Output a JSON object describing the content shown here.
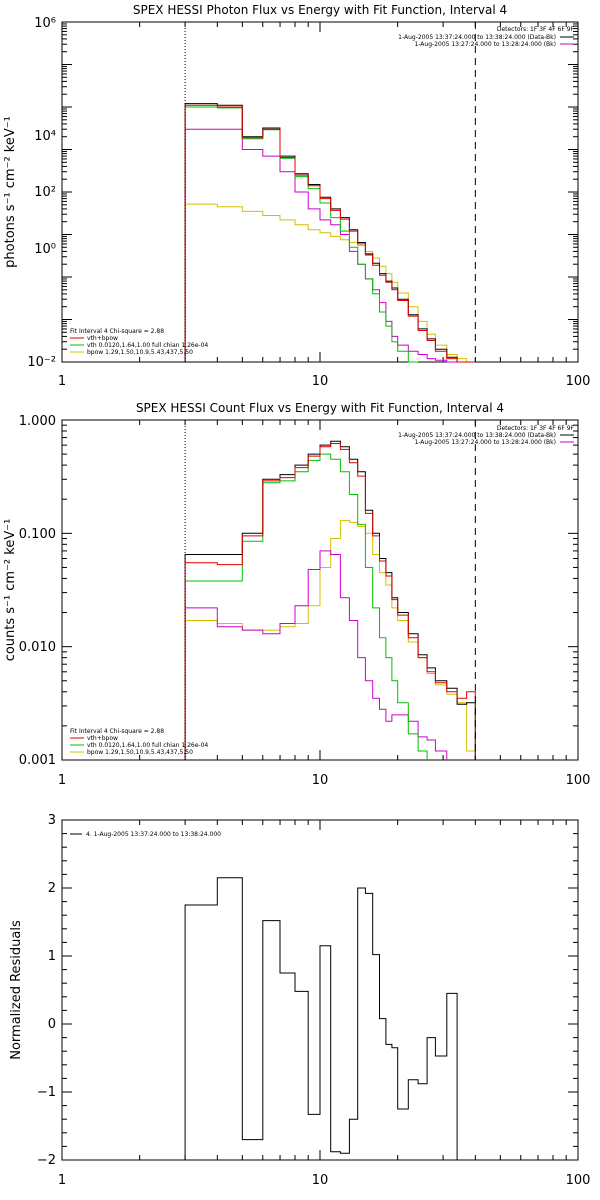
{
  "colors": {
    "total": "#000000",
    "fit_sum": "#e00000",
    "vth": "#00c000",
    "bpow": "#d4c000",
    "background": "#cc00cc"
  },
  "chart_data": [
    {
      "type": "line",
      "title": "SPEX HESSI Photon Flux vs Energy with Fit Function, Interval 4",
      "ylabel": "photons s⁻¹ cm⁻² keV⁻¹",
      "xscale": "log",
      "yscale": "log",
      "xlim": [
        1,
        100
      ],
      "ylim": [
        0.01,
        1000000
      ],
      "xticks": [
        "1",
        "10",
        "100"
      ],
      "yticks": [
        "10⁻²",
        "10⁰",
        "10²",
        "10⁴",
        "10⁶"
      ],
      "detectors": "Detectors: 1F 3F 4F 6F 9F",
      "legend": [
        "1-Aug-2005 13:37:24.000 to 13:38:24.000 (Data-Bk)",
        "1-Aug-2005 13:27:24.000 to 13:28:24.000 (Bk)"
      ],
      "fit_info": [
        "Fit Interval 4   Chi-square = 2.88",
        "vth+bpow",
        "vth 0.0120,1.64,1.00  full chian 1.26e-04",
        "bpow 1.29,1.50,10.9,5.43,437,5.50"
      ],
      "dotted_line_x": 3,
      "dashed_line_x": 40,
      "edges": [
        3,
        4,
        5,
        6,
        7,
        8,
        9,
        10,
        11,
        12,
        13,
        14,
        15,
        16,
        17,
        18,
        19,
        20,
        22,
        24,
        26,
        28,
        31,
        34,
        37,
        40
      ],
      "series": [
        {
          "name": "1-Aug-2005 13:37:24.000 to 13:38:24.000 (Data-Bk)",
          "key": "total",
          "values": [
            12000,
            11000,
            2000,
            3200,
            700,
            270,
            150,
            75,
            40,
            25,
            13,
            6.5,
            3.5,
            2.1,
            1.2,
            0.8,
            0.55,
            0.3,
            0.13,
            0.06,
            0.035,
            0.02,
            0.013,
            0.01,
            0.01
          ]
        },
        {
          "name": "vth+bpow",
          "key": "fit_sum",
          "values": [
            11000,
            10000,
            1900,
            3000,
            650,
            250,
            140,
            70,
            37,
            23,
            12,
            6,
            3.3,
            1.9,
            1.1,
            0.75,
            0.5,
            0.28,
            0.12,
            0.055,
            0.032,
            0.018,
            0.012,
            0.009,
            0.009
          ]
        },
        {
          "name": "vth",
          "key": "vth",
          "values": [
            10000,
            9500,
            1800,
            2900,
            620,
            230,
            120,
            55,
            25,
            12,
            5,
            2,
            0.9,
            0.4,
            0.15,
            0.07,
            0.03,
            0.018,
            0.007,
            null,
            null,
            null,
            null,
            null,
            null
          ]
        },
        {
          "name": "bpow",
          "key": "bpow",
          "values": [
            52,
            45,
            35,
            28,
            22,
            17,
            13,
            11,
            9,
            7.5,
            6.5,
            5.5,
            4,
            2.8,
            1.8,
            1.2,
            0.75,
            0.42,
            0.2,
            0.09,
            0.045,
            0.025,
            0.015,
            0.012,
            0.01
          ]
        },
        {
          "name": "1-Aug-2005 13:27:24.000 to 13:28:24.000 (Bk)",
          "key": "background",
          "values": [
            3000,
            3000,
            1000,
            700,
            300,
            100,
            40,
            22,
            17,
            10,
            4,
            2,
            0.9,
            0.5,
            0.25,
            0.09,
            0.04,
            0.025,
            0.018,
            0.015,
            0.012,
            0.011,
            0.01,
            null,
            null
          ]
        }
      ]
    },
    {
      "type": "line",
      "title": "SPEX HESSI Count Flux vs Energy with Fit Function, Interval 4",
      "ylabel": "counts s⁻¹ cm⁻² keV⁻¹",
      "xscale": "log",
      "yscale": "log",
      "xlim": [
        1,
        100
      ],
      "ylim": [
        0.001,
        1.0
      ],
      "xticks": [
        "1",
        "10",
        "100"
      ],
      "yticks": [
        "0.001",
        "0.010",
        "0.100",
        "1.000"
      ],
      "detectors": "Detectors: 1F 3F 4F 6F 9F",
      "legend": [
        "1-Aug-2005 13:37:24.000 to 13:38:24.000 (Data-Bk)",
        "1-Aug-2005 13:27:24.000 to 13:28:24.000 (Bk)"
      ],
      "fit_info": [
        "Fit Interval 4   Chi-square = 2.88",
        "vth+bpow",
        "vth 0.0120,1.64,1.00  full chian 1.26e-04",
        "bpow 1.29,1.50,10.9,5.43,437,5.50"
      ],
      "dotted_line_x": 3,
      "dashed_line_x": 40,
      "edges": [
        3,
        4,
        5,
        6,
        7,
        8,
        9,
        10,
        11,
        12,
        13,
        14,
        15,
        16,
        17,
        18,
        19,
        20,
        22,
        24,
        26,
        28,
        31,
        34,
        37,
        40
      ],
      "series": [
        {
          "name": "1-Aug-2005 13:37:24.000 to 13:38:24.000 (Data-Bk)",
          "key": "total",
          "values": [
            0.065,
            0.065,
            0.1,
            0.3,
            0.33,
            0.4,
            0.5,
            0.6,
            0.65,
            0.58,
            0.45,
            0.35,
            0.16,
            0.1,
            0.06,
            0.045,
            0.027,
            0.02,
            0.013,
            0.0085,
            0.0065,
            0.005,
            0.0043,
            0.0031,
            0.0032
          ]
        },
        {
          "name": "vth+bpow",
          "key": "fit_sum",
          "values": [
            0.055,
            0.053,
            0.095,
            0.29,
            0.31,
            0.38,
            0.48,
            0.58,
            0.62,
            0.55,
            0.42,
            0.32,
            0.15,
            0.095,
            0.057,
            0.042,
            0.026,
            0.019,
            0.012,
            0.008,
            0.006,
            0.0048,
            0.004,
            0.0035,
            0.004
          ]
        },
        {
          "name": "vth",
          "key": "vth",
          "values": [
            0.038,
            0.038,
            0.085,
            0.28,
            0.29,
            0.35,
            0.44,
            0.5,
            0.45,
            0.35,
            0.22,
            0.12,
            0.05,
            0.022,
            0.012,
            0.008,
            0.005,
            0.0032,
            0.0017,
            0.0012,
            null,
            null,
            null,
            null,
            null
          ]
        },
        {
          "name": "bpow",
          "key": "bpow",
          "values": [
            0.017,
            0.016,
            0.014,
            0.014,
            0.015,
            0.016,
            0.023,
            0.05,
            0.09,
            0.13,
            0.125,
            0.115,
            0.1,
            0.065,
            0.045,
            0.035,
            0.022,
            0.017,
            0.011,
            0.008,
            0.0058,
            0.0046,
            0.0038,
            0.0032,
            0.0012
          ]
        },
        {
          "name": "1-Aug-2005 13:27:24.000 to 13:28:24.000 (Bk)",
          "key": "background",
          "values": [
            0.022,
            0.015,
            0.014,
            0.013,
            0.016,
            0.023,
            0.048,
            0.07,
            0.065,
            0.027,
            0.017,
            0.008,
            0.005,
            0.0035,
            0.0028,
            0.0022,
            0.0025,
            0.0025,
            0.0022,
            0.0016,
            0.0015,
            0.0012,
            null,
            null,
            null
          ]
        }
      ]
    },
    {
      "type": "line",
      "ylabel": "Normalized Residuals",
      "xscale": "log",
      "yscale": "linear",
      "xlim": [
        1,
        100
      ],
      "ylim": [
        -2,
        3
      ],
      "xticks": [
        "1",
        "10",
        "100"
      ],
      "yticks": [
        "−2",
        "−1",
        "0",
        "1",
        "2",
        "3"
      ],
      "legend": [
        "4. 1-Aug-2005 13:37:24.000 to 13:38:24.000"
      ],
      "edges": [
        3,
        4,
        5,
        6,
        7,
        8,
        9,
        10,
        11,
        12,
        13,
        14,
        15,
        16,
        17,
        18,
        19,
        20,
        22,
        24,
        26,
        28,
        31,
        34,
        37,
        40
      ],
      "series": [
        {
          "name": "4. 1-Aug-2005 13:37:24.000 to 13:38:24.000",
          "key": "total",
          "values": [
            1.75,
            2.15,
            -1.7,
            1.52,
            0.75,
            0.48,
            -1.33,
            1.15,
            -1.88,
            -1.9,
            -1.4,
            2.0,
            1.92,
            1.02,
            0.08,
            -0.3,
            -0.35,
            -1.25,
            -0.82,
            -0.88,
            -0.2,
            -0.47,
            0.45,
            null,
            null
          ]
        }
      ]
    }
  ]
}
